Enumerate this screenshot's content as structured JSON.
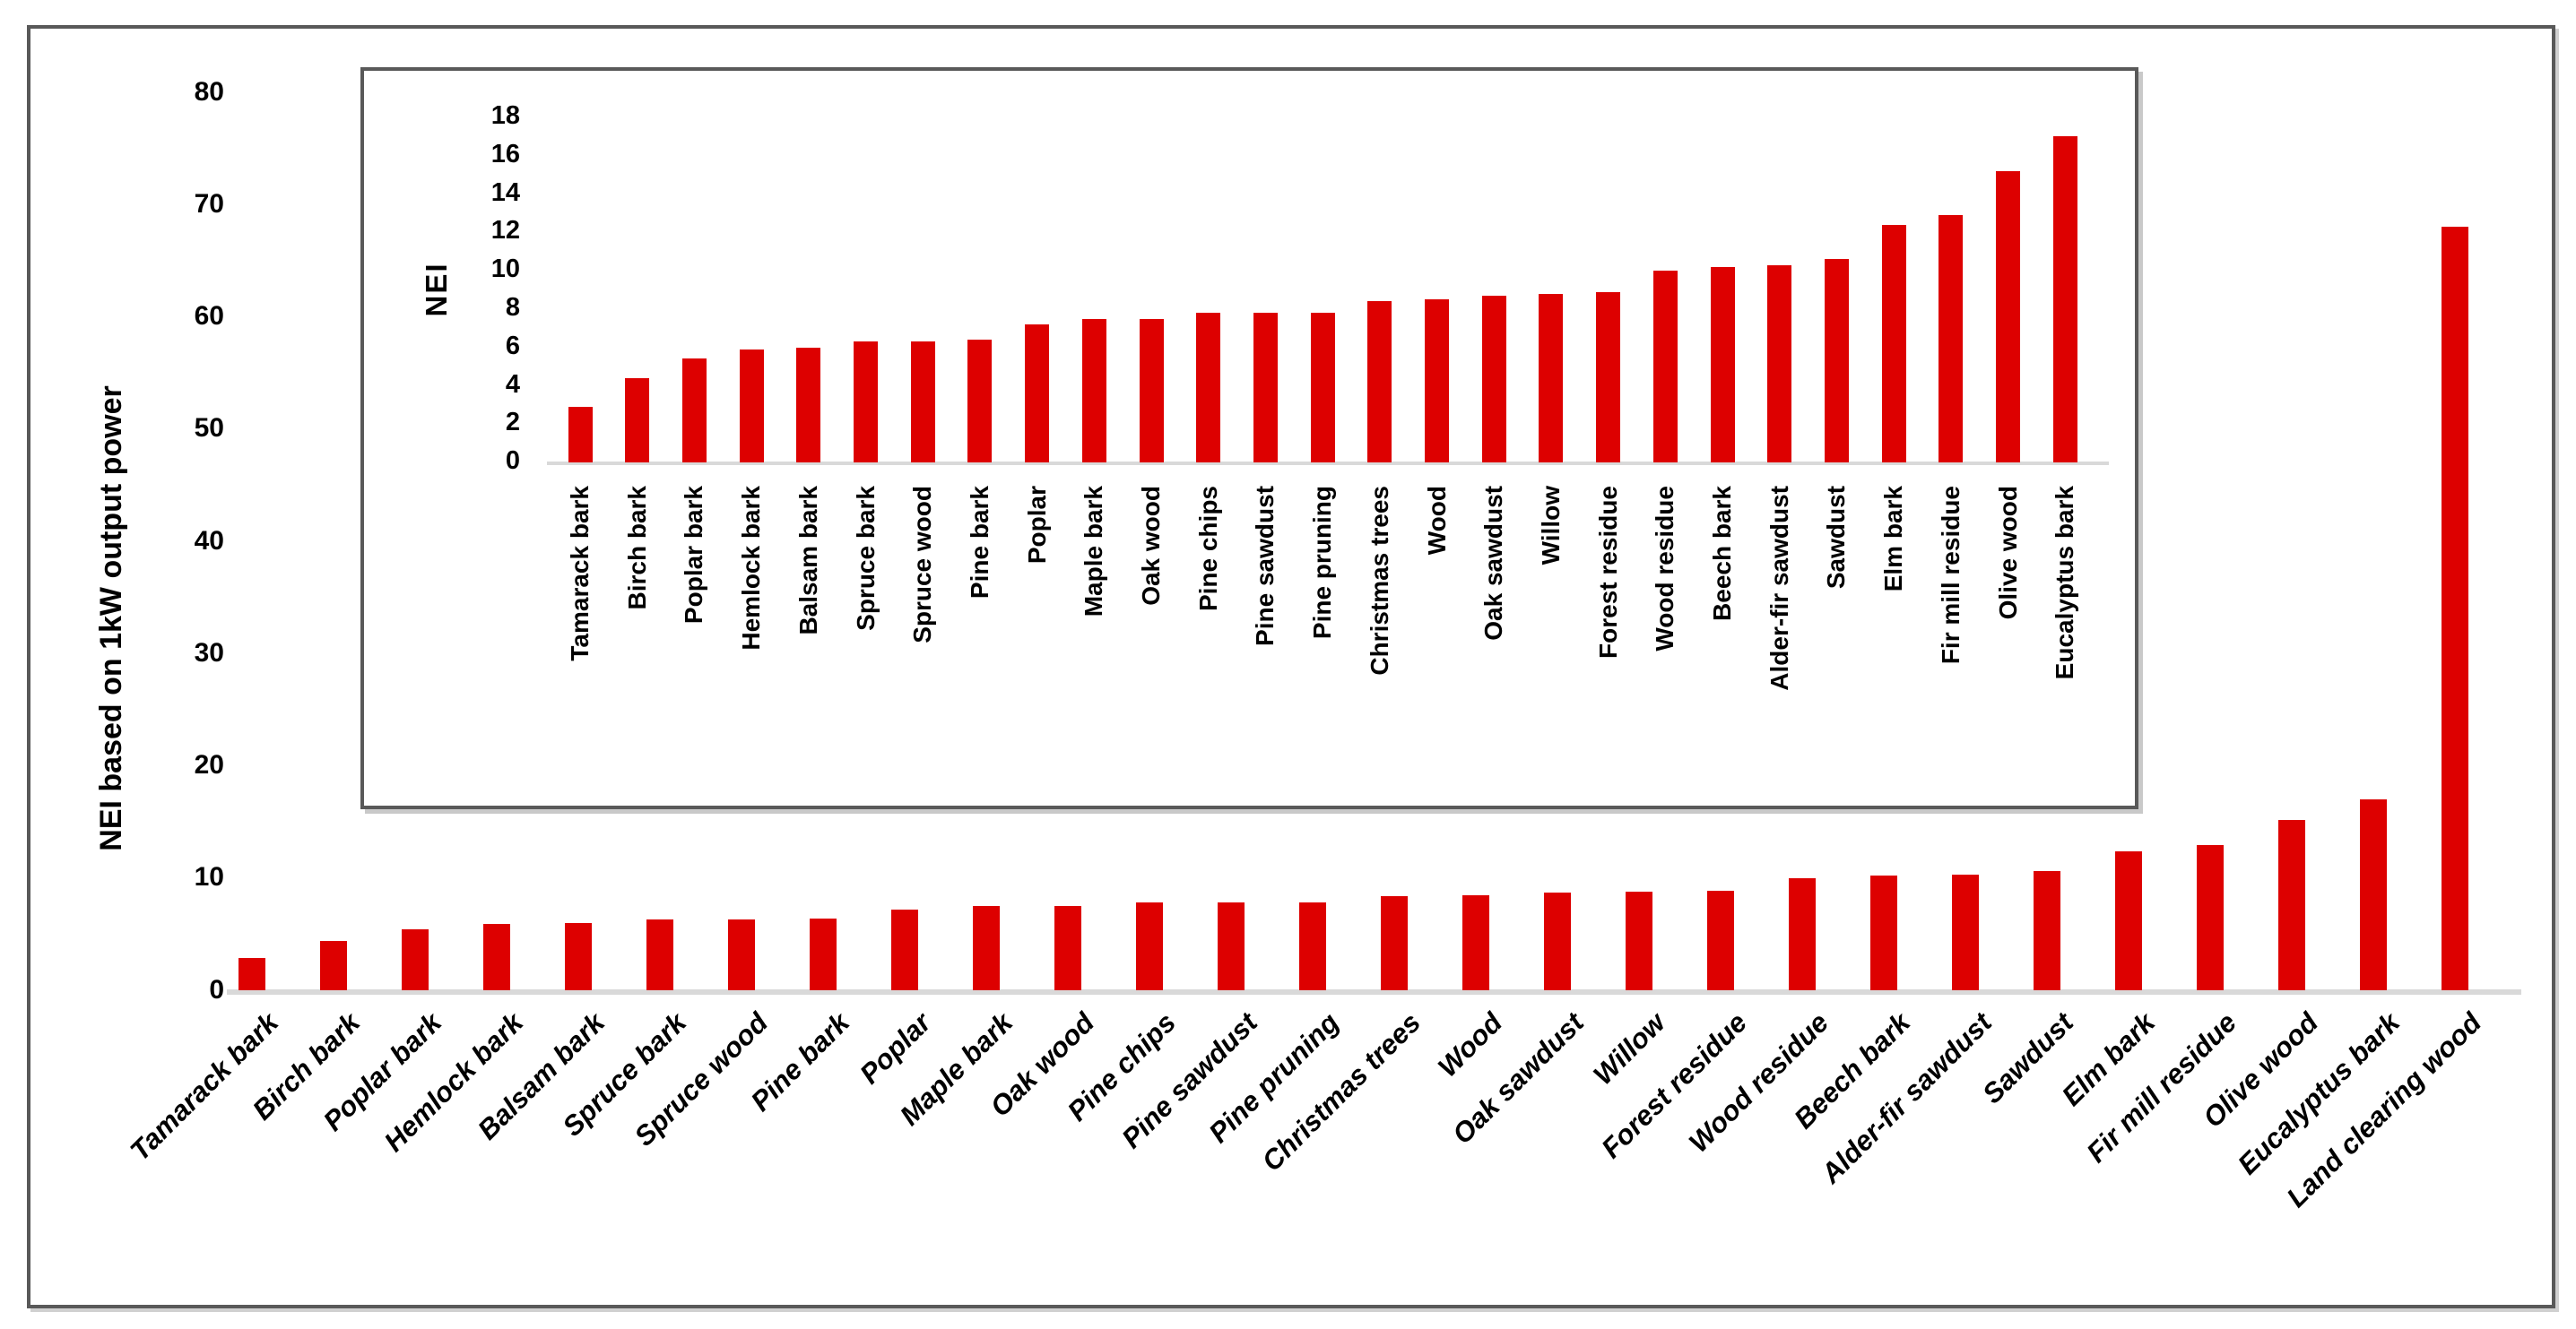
{
  "figure": {
    "background_color": "#FFFFFF",
    "border_color": "#595959",
    "bar_color": "#DD0000",
    "baseline_color": "#D9D9D9",
    "text_color": "#000000"
  },
  "chart_data": [
    {
      "id": "main",
      "type": "bar",
      "title": "",
      "xlabel": "",
      "ylabel": "NEI based on 1kW output power",
      "ylim": [
        0,
        80
      ],
      "ytick_step": 10,
      "yticks": [
        0,
        10,
        20,
        30,
        40,
        50,
        60,
        70,
        80
      ],
      "grid": false,
      "legend": false,
      "categories": [
        "Tamarack bark",
        "Birch bark",
        "Poplar bark",
        "Hemlock bark",
        "Balsam bark",
        "Spruce bark",
        "Spruce wood",
        "Pine bark",
        "Poplar",
        "Maple bark",
        "Oak wood",
        "Pine chips",
        "Pine sawdust",
        "Pine pruning",
        "Christmas trees",
        "Wood",
        "Oak sawdust",
        "Willow",
        "Forest residue",
        "Wood residue",
        "Beech bark",
        "Alder-fir sawdust",
        "Sawdust",
        "Elm bark",
        "Fir mill residue",
        "Olive wood",
        "Eucalyptus bark",
        "Land clearing wood"
      ],
      "values": [
        2.9,
        4.4,
        5.4,
        5.9,
        6.0,
        6.3,
        6.3,
        6.4,
        7.2,
        7.5,
        7.5,
        7.8,
        7.8,
        7.8,
        8.4,
        8.5,
        8.7,
        8.8,
        8.9,
        10.0,
        10.2,
        10.3,
        10.6,
        12.4,
        12.9,
        15.2,
        17.0,
        68.0
      ]
    },
    {
      "id": "inset",
      "type": "bar",
      "title": "",
      "xlabel": "",
      "ylabel": "NEI",
      "ylim": [
        0,
        18
      ],
      "ytick_step": 2,
      "yticks": [
        0,
        2,
        4,
        6,
        8,
        10,
        12,
        14,
        16,
        18
      ],
      "grid": false,
      "legend": false,
      "categories": [
        "Tamarack bark",
        "Birch bark",
        "Poplar bark",
        "Hemlock bark",
        "Balsam bark",
        "Spruce bark",
        "Spruce wood",
        "Pine bark",
        "Poplar",
        "Maple bark",
        "Oak wood",
        "Pine chips",
        "Pine sawdust",
        "Pine pruning",
        "Christmas trees",
        "Wood",
        "Oak sawdust",
        "Willow",
        "Forest residue",
        "Wood residue",
        "Beech bark",
        "Alder-fir sawdust",
        "Sawdust",
        "Elm bark",
        "Fir mill residue",
        "Olive wood",
        "Eucalyptus bark"
      ],
      "values": [
        2.9,
        4.4,
        5.4,
        5.9,
        6.0,
        6.3,
        6.3,
        6.4,
        7.2,
        7.5,
        7.5,
        7.8,
        7.8,
        7.8,
        8.4,
        8.5,
        8.7,
        8.8,
        8.9,
        10.0,
        10.2,
        10.3,
        10.6,
        12.4,
        12.9,
        15.2,
        17.0
      ]
    }
  ]
}
